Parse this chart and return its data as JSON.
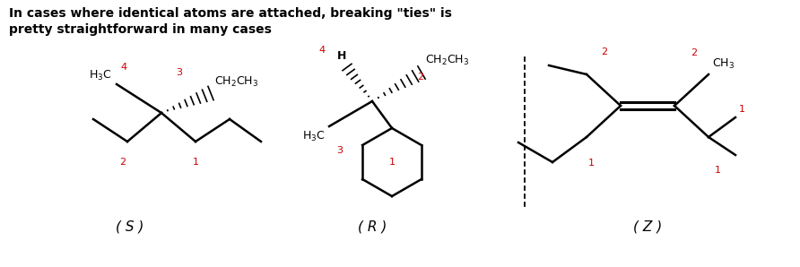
{
  "title_line1": "In cases where identical atoms are attached, breaking \"ties\" is",
  "title_line2": "pretty straightforward in many cases",
  "title_fontsize": 10.5,
  "bg_color": "#ffffff",
  "text_color": "#000000",
  "red_color": "#cc0000",
  "label_S": "( S )",
  "label_R": "( R )",
  "label_Z": "( Z )"
}
